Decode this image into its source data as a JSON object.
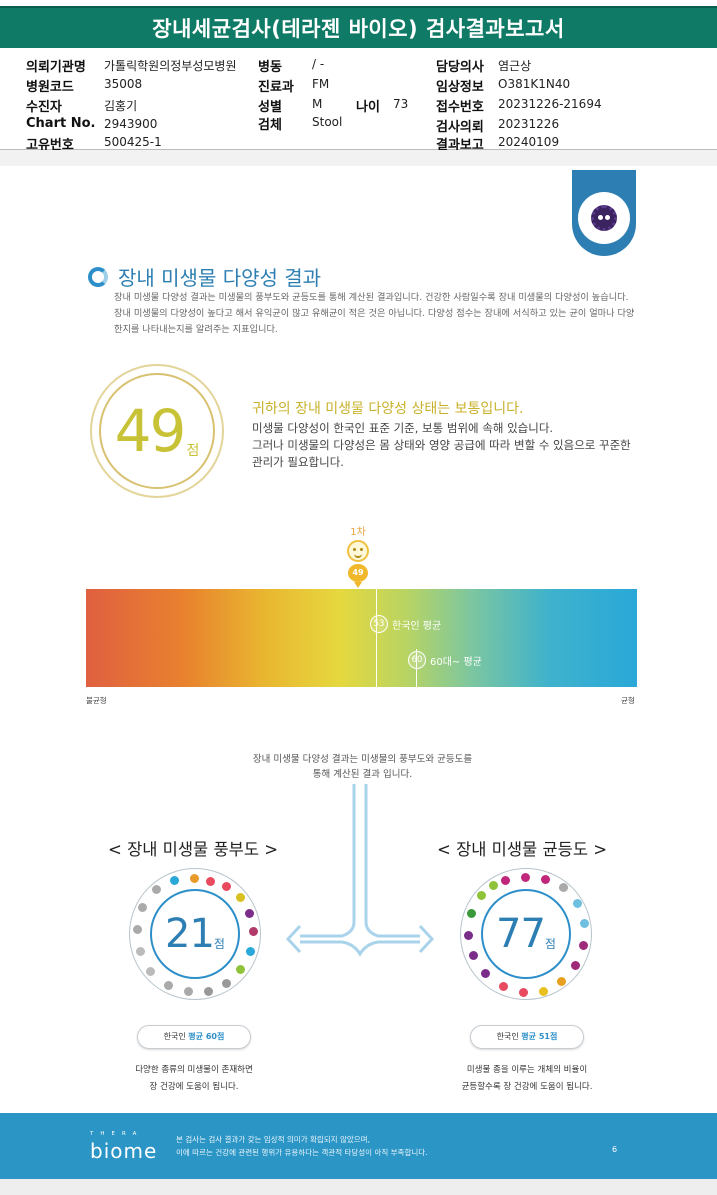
{
  "title": "장내세균검사(테라젠 바이오) 검사결과보고서",
  "info": {
    "org_label": "의뢰기관명",
    "org": "가톨릭학원의정부성모병원",
    "ward_label": "병동",
    "ward": "/ -",
    "doctor_label": "담당의사",
    "doctor": "염근상",
    "code_label": "병원코드",
    "code": "35008",
    "dept_label": "진료과",
    "dept": "FM",
    "clinical_label": "임상정보",
    "clinical": "O381K1N40",
    "patient_label": "수진자",
    "patient": "김홍기",
    "sex_label": "성별",
    "sex": "M",
    "age_label": "나이",
    "age": "73",
    "receipt_label": "접수번호",
    "receipt": "20231226-21694",
    "chart_label": "Chart No.",
    "chart": "2943900",
    "specimen_label": "검체",
    "specimen": "Stool",
    "req_label": "검사의뢰",
    "req": "20231226",
    "uid_label": "고유번호",
    "uid": "500425-1",
    "report_label": "결과보고",
    "report": "20240109"
  },
  "section": {
    "title": "장내 미생물 다양성 결과",
    "intro1": "장내 미생물 다양성 결과는 미생물의 풍부도와 균등도를 통해 계산된 결과입니다. 건강한 사람일수록 장내 미생물의 다양성이 높습니다.",
    "intro2": "장내 미생물의 다양성이 높다고 해서 유익균이 많고 유해균이 적은 것은 아닙니다. 다양성 점수는 장내에 서식하고 있는 균이 얼마나 다양한지를 나타내는지를 알려주는 지표입니다."
  },
  "score": {
    "value": "49",
    "unit": "점",
    "verdict": "귀하의 장내 미생물 다양성 상태는 보통입니다.",
    "body1": "미생물 다양성이 한국인 표준 기준, 보통 범위에 속해 있습니다.",
    "body2": "그러나 미생물의 다양성은 몸 상태와 영양 공급에 따라 변할 수 있음으로 꾸준한 관리가 필요합니다."
  },
  "scale": {
    "marker_label": "1차",
    "marker_value": "49",
    "korean_avg_value": "53",
    "korean_avg_label": "한국인 평균",
    "age_avg_value": "60",
    "age_avg_label": "60대~ 평균",
    "left_end": "불균형",
    "right_end": "균형",
    "colors": [
      "#e06040",
      "#e9b530",
      "#e6d83e",
      "#7cc6a0",
      "#2aa8d8"
    ]
  },
  "connector": {
    "line1": "장내 미생물 다양성 결과는 미생물의 풍부도와 균등도를",
    "line2": "통해 계산된 결과 입니다."
  },
  "richness": {
    "title": "< 장내 미생물 풍부도 >",
    "value": "21",
    "unit": "점",
    "avg_prefix": "한국인 ",
    "avg_mid": "평균",
    "avg_value": " 60점",
    "caption1": "다양한 종류의 미생물이 존재하면",
    "caption2": "장 건강에 도움이 됩니다."
  },
  "evenness": {
    "title": "< 장내 미생물 균등도 >",
    "value": "77",
    "unit": "점",
    "avg_prefix": "한국인 ",
    "avg_mid": "평균",
    "avg_value": " 51점",
    "caption1": "미생물 종을 이루는 개체의 비율이",
    "caption2": "균등할수록 장 건강에 도움이 됩니다."
  },
  "footer": {
    "brand_small": "THERA",
    "brand": "biome",
    "note1": "본 검사는 검사 결과가 갖는 임상적 의미가 확립되지 않았으며,",
    "note2": "이에 따르는 건강에 관련된 행위가 유용하다는 객관적 타당성이 아직 부족합니다.",
    "page": "6"
  }
}
